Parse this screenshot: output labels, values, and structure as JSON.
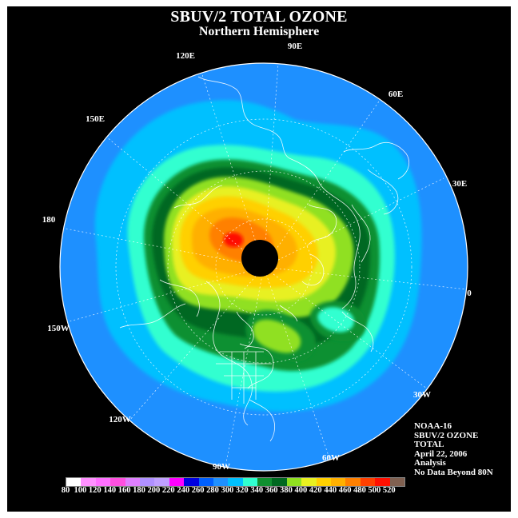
{
  "header": {
    "title": "SBUV/2 TOTAL OZONE",
    "subtitle": "Northern Hemisphere"
  },
  "map": {
    "projection": "north-polar-stereographic",
    "longitude_labels": [
      "90E",
      "60E",
      "30E",
      "0",
      "30W",
      "60W",
      "90W",
      "120W",
      "150W",
      "180",
      "150E",
      "120E"
    ],
    "no_data_region": "beyond 80N",
    "colors": {
      "background": "#000000",
      "coastline": "#ffffff",
      "graticule": "#ffffff",
      "no_data": "#000000"
    },
    "ozone_regions": [
      {
        "value_du": 280,
        "color": "#1e90ff"
      },
      {
        "value_du": 300,
        "color": "#00c0ff"
      },
      {
        "value_du": 320,
        "color": "#30ffd0"
      },
      {
        "value_du": 340,
        "color": "#109030"
      },
      {
        "value_du": 360,
        "color": "#006820"
      },
      {
        "value_du": 380,
        "color": "#90e020"
      },
      {
        "value_du": 400,
        "color": "#e8f020"
      },
      {
        "value_du": 420,
        "color": "#ffd000"
      },
      {
        "value_du": 440,
        "color": "#ffb000"
      },
      {
        "value_du": 460,
        "color": "#ff8000"
      },
      {
        "value_du": 500,
        "color": "#ff1000"
      }
    ]
  },
  "info": {
    "satellite": "NOAA-16",
    "product": "SBUV/2 OZONE",
    "type": "TOTAL",
    "date": "April 22, 2006",
    "mode": "Analysis",
    "note": "No Data Beyond 80N"
  },
  "colorbar": {
    "ticks": [
      "80",
      "100",
      "120",
      "140",
      "160",
      "180",
      "200",
      "220",
      "240",
      "260",
      "280",
      "300",
      "320",
      "340",
      "360",
      "380",
      "400",
      "420",
      "440",
      "460",
      "480",
      "500",
      "520"
    ],
    "colors": [
      "#ffffff",
      "#ff90ff",
      "#ff70ff",
      "#ff50e0",
      "#e080ff",
      "#b090ff",
      "#c0a0ff",
      "#ff00ff",
      "#0000e0",
      "#0060ff",
      "#1e90ff",
      "#00c0ff",
      "#30ffd0",
      "#109030",
      "#006820",
      "#90e020",
      "#e8f020",
      "#ffd000",
      "#ffb000",
      "#ff8000",
      "#ff4000",
      "#ff1000",
      "#806050"
    ]
  }
}
